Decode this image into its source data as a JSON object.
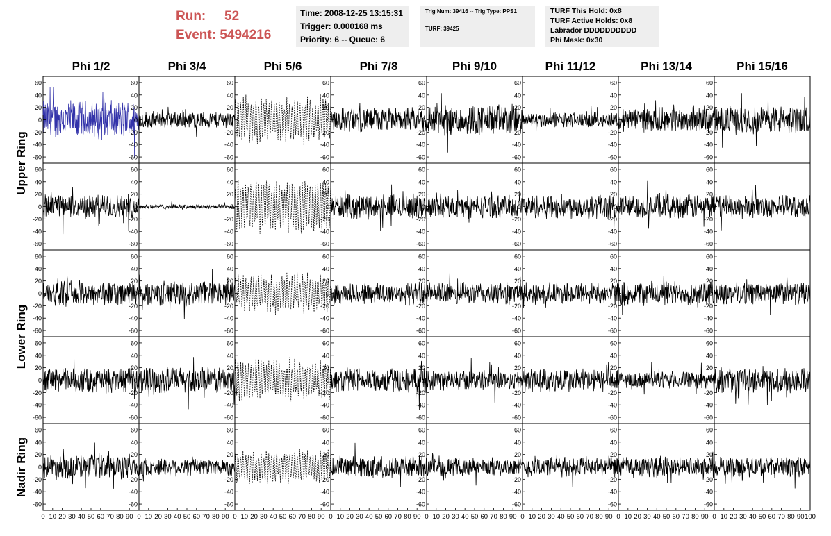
{
  "header": {
    "run_label": "Run:",
    "run_value": "52",
    "event_label": "Event:",
    "event_value": "5494216",
    "time_line": "Time: 2008-12-25 13:15:31",
    "trigger_line": "Trigger: 0.000168 ms",
    "priority_line": "Priority: 6 -- Queue: 6",
    "trig_num_line": "Trig Num: 39416 -- Trig Type: PPS1",
    "turf_line": "TURF: 39425",
    "turf_hold_line": "TURF This Hold: 0x8",
    "turf_active_line": "TURF Active Holds: 0x8",
    "labrador_line": "Labrador DDDDDDDDDD",
    "phi_mask_line": "Phi Mask: 0x30",
    "run_color": "#cc5555"
  },
  "columns": [
    "Phi 1/2",
    "Phi 3/4",
    "Phi 5/6",
    "Phi 7/8",
    "Phi 9/10",
    "Phi 11/12",
    "Phi 13/14",
    "Phi 15/16"
  ],
  "rows": [
    "Upper Ring",
    "Upper Ring",
    "Lower Ring",
    "Lower Ring",
    "Nadir Ring"
  ],
  "ring_labels": [
    {
      "text": "Upper Ring",
      "rows": [
        0,
        1
      ]
    },
    {
      "text": "Lower Ring",
      "rows": [
        2,
        3
      ]
    },
    {
      "text": "Nadir Ring",
      "rows": [
        4
      ]
    }
  ],
  "chart_data": {
    "type": "line",
    "title": "",
    "xlabel": "",
    "ylabel": "",
    "xlim": [
      0,
      100
    ],
    "ylim": [
      -70,
      70
    ],
    "x_ticks": [
      0,
      10,
      20,
      30,
      40,
      50,
      60,
      70,
      80,
      90,
      100
    ],
    "y_ticks": [
      -60,
      -40,
      -20,
      0,
      20,
      40,
      60
    ],
    "grid": false,
    "panels_layout": "5 rows x 8 columns of waveform panels",
    "highlight": {
      "row": 0,
      "col": 0,
      "color": "#3333aa"
    },
    "dashed_column": 2,
    "line_color": "#000000",
    "panel_amplitudes": [
      [
        35,
        15,
        30,
        22,
        28,
        14,
        22,
        25
      ],
      [
        22,
        4,
        35,
        22,
        20,
        22,
        22,
        20
      ],
      [
        22,
        22,
        25,
        20,
        20,
        20,
        22,
        20
      ],
      [
        22,
        24,
        28,
        22,
        18,
        22,
        15,
        22
      ],
      [
        22,
        16,
        22,
        20,
        16,
        18,
        18,
        18
      ]
    ]
  }
}
